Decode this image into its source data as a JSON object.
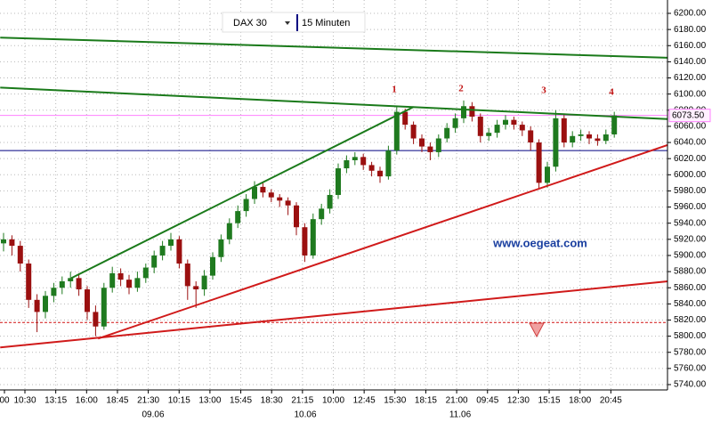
{
  "chart_data": {
    "type": "candlestick",
    "instrument": "DAX 30",
    "interval": "15 Minuten",
    "up_color": "#1f7a1f",
    "down_color": "#9b1010",
    "candles": [
      [
        5915,
        5928,
        5905,
        5920
      ],
      [
        5920,
        5925,
        5900,
        5912
      ],
      [
        5912,
        5918,
        5880,
        5890
      ],
      [
        5890,
        5895,
        5835,
        5845
      ],
      [
        5845,
        5852,
        5805,
        5830
      ],
      [
        5830,
        5856,
        5822,
        5850
      ],
      [
        5850,
        5866,
        5842,
        5860
      ],
      [
        5860,
        5874,
        5852,
        5868
      ],
      [
        5868,
        5880,
        5860,
        5872
      ],
      [
        5872,
        5878,
        5850,
        5858
      ],
      [
        5858,
        5862,
        5820,
        5830
      ],
      [
        5830,
        5838,
        5800,
        5812
      ],
      [
        5812,
        5866,
        5808,
        5860
      ],
      [
        5860,
        5886,
        5854,
        5878
      ],
      [
        5878,
        5884,
        5862,
        5870
      ],
      [
        5870,
        5876,
        5852,
        5860
      ],
      [
        5860,
        5880,
        5855,
        5872
      ],
      [
        5872,
        5890,
        5866,
        5885
      ],
      [
        5885,
        5906,
        5878,
        5900
      ],
      [
        5900,
        5918,
        5894,
        5912
      ],
      [
        5912,
        5928,
        5906,
        5920
      ],
      [
        5920,
        5924,
        5884,
        5890
      ],
      [
        5890,
        5895,
        5845,
        5862
      ],
      [
        5862,
        5868,
        5835,
        5858
      ],
      [
        5858,
        5882,
        5850,
        5875
      ],
      [
        5875,
        5904,
        5870,
        5898
      ],
      [
        5898,
        5926,
        5892,
        5920
      ],
      [
        5920,
        5946,
        5914,
        5940
      ],
      [
        5940,
        5962,
        5934,
        5955
      ],
      [
        5955,
        5976,
        5948,
        5970
      ],
      [
        5970,
        5992,
        5964,
        5985
      ],
      [
        5985,
        5990,
        5972,
        5978
      ],
      [
        5978,
        5982,
        5966,
        5972
      ],
      [
        5972,
        5976,
        5960,
        5968
      ],
      [
        5968,
        5972,
        5950,
        5962
      ],
      [
        5962,
        5966,
        5925,
        5935
      ],
      [
        5935,
        5940,
        5892,
        5900
      ],
      [
        5900,
        5952,
        5896,
        5945
      ],
      [
        5945,
        5964,
        5938,
        5958
      ],
      [
        5958,
        5982,
        5952,
        5975
      ],
      [
        5975,
        6014,
        5970,
        6008
      ],
      [
        6008,
        6024,
        6002,
        6018
      ],
      [
        6018,
        6028,
        6012,
        6022
      ],
      [
        6022,
        6026,
        6006,
        6012
      ],
      [
        6012,
        6016,
        5998,
        6005
      ],
      [
        6005,
        6010,
        5990,
        5998
      ],
      [
        5998,
        6036,
        5994,
        6030
      ],
      [
        6030,
        6084,
        6025,
        6078
      ],
      [
        6078,
        6082,
        6056,
        6062
      ],
      [
        6062,
        6066,
        6038,
        6045
      ],
      [
        6045,
        6050,
        6028,
        6035
      ],
      [
        6035,
        6040,
        6018,
        6028
      ],
      [
        6028,
        6050,
        6022,
        6045
      ],
      [
        6045,
        6064,
        6040,
        6058
      ],
      [
        6058,
        6076,
        6052,
        6070
      ],
      [
        6070,
        6092,
        6064,
        6085
      ],
      [
        6085,
        6090,
        6066,
        6072
      ],
      [
        6072,
        6076,
        6040,
        6048
      ],
      [
        6048,
        6058,
        6042,
        6052
      ],
      [
        6052,
        6068,
        6046,
        6062
      ],
      [
        6062,
        6074,
        6056,
        6068
      ],
      [
        6068,
        6072,
        6056,
        6062
      ],
      [
        6062,
        6066,
        6048,
        6055
      ],
      [
        6055,
        6060,
        6030,
        6040
      ],
      [
        6040,
        6044,
        5982,
        5990
      ],
      [
        5990,
        6016,
        5984,
        6010
      ],
      [
        6010,
        6080,
        6004,
        6070
      ],
      [
        6070,
        6074,
        6034,
        6040
      ],
      [
        6040,
        6054,
        6034,
        6048
      ],
      [
        6048,
        6056,
        6042,
        6050
      ],
      [
        6050,
        6054,
        6038,
        6045
      ],
      [
        6045,
        6050,
        6036,
        6042
      ],
      [
        6042,
        6056,
        6038,
        6050
      ],
      [
        6050,
        6078,
        6046,
        6073.5
      ]
    ],
    "ylim": [
      5740,
      6200
    ],
    "yticks": [
      {
        "value": 5740,
        "label": "5740.00"
      },
      {
        "value": 5760,
        "label": "5760.00"
      },
      {
        "value": 5780,
        "label": "5780.00"
      },
      {
        "value": 5800,
        "label": "5800.00"
      },
      {
        "value": 5820,
        "label": "5820.00"
      },
      {
        "value": 5840,
        "label": "5840.00"
      },
      {
        "value": 5860,
        "label": "5860.00"
      },
      {
        "value": 5880,
        "label": "5880.00"
      },
      {
        "value": 5900,
        "label": "5900.00"
      },
      {
        "value": 5920,
        "label": "5920.00"
      },
      {
        "value": 5940,
        "label": "5940.00"
      },
      {
        "value": 5960,
        "label": "5960.00"
      },
      {
        "value": 5980,
        "label": "5980.00"
      },
      {
        "value": 6000,
        "label": "6000.00"
      },
      {
        "value": 6020,
        "label": "6020.00"
      },
      {
        "value": 6040,
        "label": "6040.00"
      },
      {
        "value": 6060,
        "label": "6060.00"
      },
      {
        "value": 6080,
        "label": "6080.00"
      },
      {
        "value": 6100,
        "label": "6100.00"
      },
      {
        "value": 6120,
        "label": "6120.00"
      },
      {
        "value": 6140,
        "label": "6140.00"
      },
      {
        "value": 6160,
        "label": "6160.00"
      },
      {
        "value": 6180,
        "label": "6180.00"
      },
      {
        "value": 6200,
        "label": "6200.00"
      }
    ],
    "x_labels": [
      "00",
      "10:30",
      "13:15",
      "16:00",
      "18:45",
      "21:30",
      "10:15",
      "13:00",
      "15:45",
      "18:30",
      "21:15",
      "10:00",
      "12:45",
      "15:30",
      "18:15",
      "21:00",
      "09:45",
      "12:30",
      "15:15",
      "18:00",
      "20:45"
    ],
    "dates": [
      "09.06",
      "10.06",
      "11.06"
    ],
    "grid": true,
    "last_price": {
      "value": 6073.5,
      "label": "6073.50"
    },
    "hlines": [
      {
        "value": 6030,
        "color": "#000080",
        "dashed": false
      },
      {
        "value": 5817,
        "color": "#d01010",
        "dashed": true
      }
    ],
    "trendlines": [
      {
        "color": "#1a7a1a",
        "x": [
          -0.4,
          79.4
        ],
        "y": [
          6170,
          6145
        ]
      },
      {
        "color": "#1a7a1a",
        "x": [
          -0.4,
          79.4
        ],
        "y": [
          6108,
          6069
        ]
      },
      {
        "color": "#1a7a1a",
        "x": [
          8.1,
          49
        ],
        "y": [
          5872,
          6084
        ]
      },
      {
        "color": "#d01a1a",
        "x": [
          -0.4,
          79.4
        ],
        "y": [
          5786,
          5868
        ]
      },
      {
        "color": "#d01a1a",
        "x": [
          11.3,
          79.4
        ],
        "y": [
          5797,
          6037
        ]
      }
    ],
    "annotations": [
      "1",
      "2",
      "3",
      "4",
      "www.oegeat.com"
    ]
  }
}
